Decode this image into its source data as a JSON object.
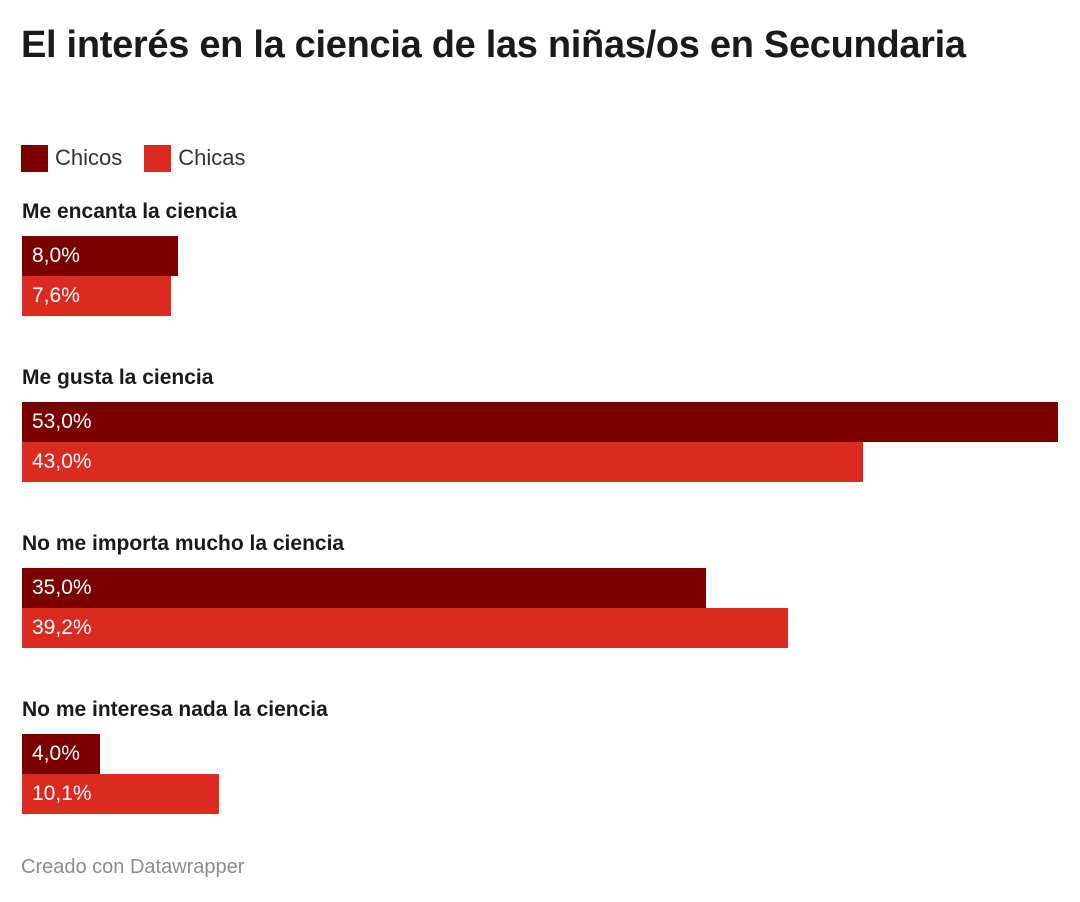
{
  "chart_data": {
    "type": "bar",
    "orientation": "horizontal",
    "title": "El interés en la ciencia de las niñas/os en Secundaria",
    "categories": [
      "Me encanta la ciencia",
      "Me gusta la ciencia",
      "No me importa mucho la ciencia",
      "No me interesa nada la ciencia"
    ],
    "series": [
      {
        "name": "Chicos",
        "color": "#7b0000",
        "values": [
          8.0,
          53.0,
          35.0,
          4.0
        ],
        "labels": [
          "8,0%",
          "53,0%",
          "35,0%",
          "4,0%"
        ]
      },
      {
        "name": "Chicas",
        "color": "#db2a1f",
        "values": [
          7.6,
          43.0,
          39.2,
          10.1
        ],
        "labels": [
          "7,6%",
          "43,0%",
          "39,2%",
          "10,1%"
        ]
      }
    ],
    "xlim": [
      0,
      53.0
    ],
    "grid": false,
    "legend": "top-left"
  },
  "footer": "Creado con Datawrapper"
}
